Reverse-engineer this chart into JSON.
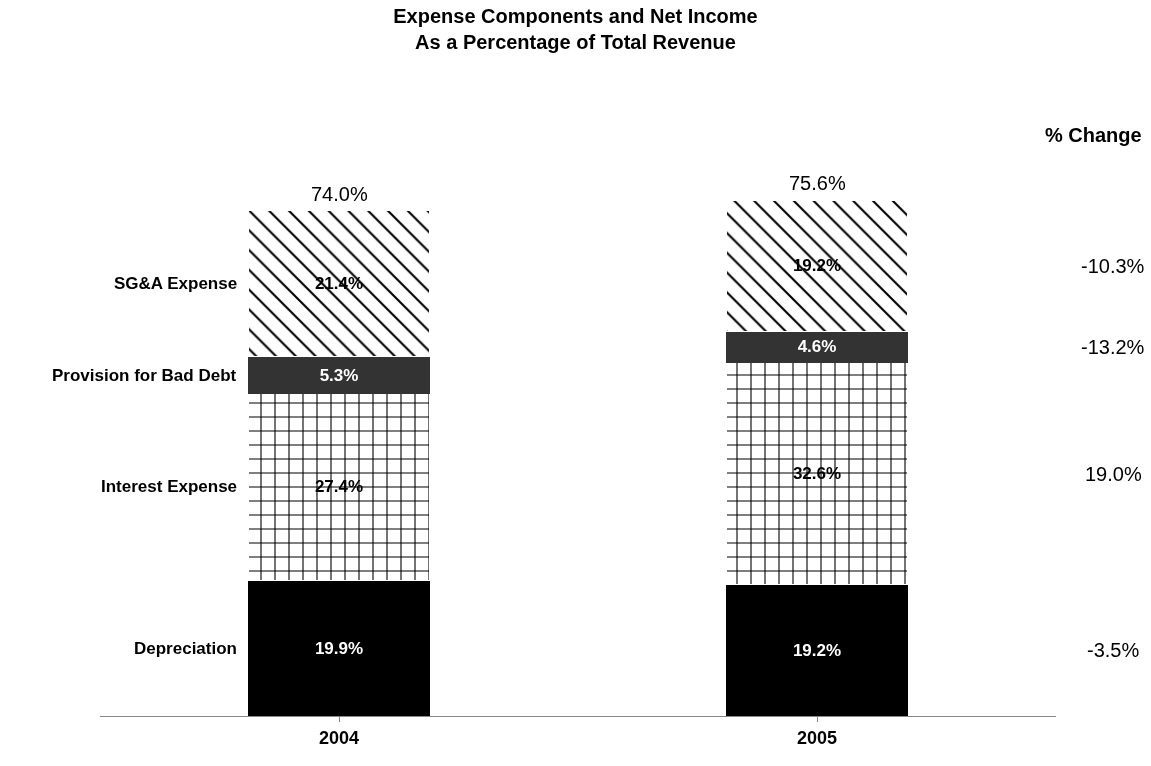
{
  "chart_data": {
    "type": "bar",
    "title": "Expense Components and Net Income\nAs a Percentage of Total Revenue",
    "stacked": true,
    "legend": false,
    "categories": [
      "2004",
      "2005"
    ],
    "series": [
      {
        "name": "Depreciation",
        "color": "#000000",
        "values": [
          19.9,
          19.2
        ],
        "value_labels": [
          "19.9%",
          "19.2%"
        ]
      },
      {
        "name": "Interest Expense",
        "color": "#ffffff",
        "values": [
          27.4,
          32.6
        ],
        "value_labels": [
          "27.4%",
          "32.6%"
        ]
      },
      {
        "name": "Provision for Bad Debt",
        "color": "#333333",
        "values": [
          5.3,
          4.6
        ],
        "value_labels": [
          "5.3%",
          "4.6%"
        ]
      },
      {
        "name": "SG&A Expense",
        "color": "#ffffff",
        "values": [
          21.4,
          19.2
        ],
        "value_labels": [
          "21.4%",
          "19.2%"
        ]
      }
    ],
    "totals": [
      "74.0%",
      "75.6%"
    ],
    "annotations": [
      "% Change",
      "-3.5%",
      "19.0%",
      "-13.2%",
      "-10.3%"
    ]
  }
}
